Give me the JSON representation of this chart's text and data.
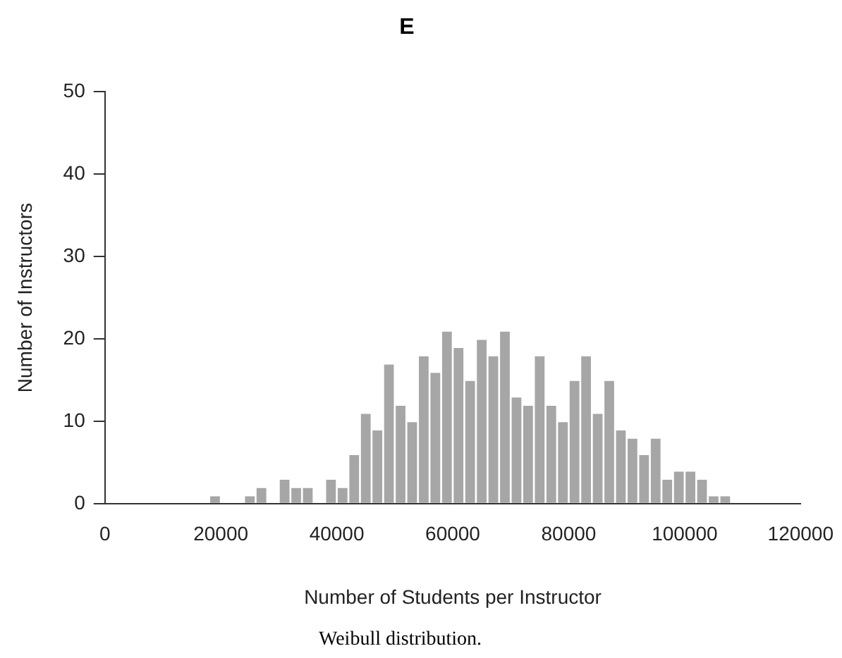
{
  "chart_data": {
    "type": "histogram",
    "title": "E",
    "xlabel": "Number of Students per Instructor",
    "ylabel": "Number of Instructors",
    "bins": [
      18000,
      20000,
      22000,
      24000,
      26000,
      28000,
      30000,
      32000,
      34000,
      36000,
      38000,
      40000,
      42000,
      44000,
      46000,
      48000,
      50000,
      52000,
      54000,
      56000,
      58000,
      60000,
      62000,
      64000,
      66000,
      68000,
      70000,
      72000,
      74000,
      76000,
      78000,
      80000,
      82000,
      84000,
      86000,
      88000,
      90000,
      92000,
      94000,
      96000,
      98000,
      100000,
      102000,
      104000,
      106000,
      108000
    ],
    "values": [
      1,
      0,
      0,
      1,
      2,
      0,
      3,
      2,
      2,
      0,
      3,
      2,
      6,
      11,
      9,
      17,
      12,
      10,
      18,
      16,
      21,
      19,
      15,
      20,
      18,
      21,
      13,
      12,
      18,
      12,
      10,
      15,
      18,
      11,
      15,
      9,
      8,
      6,
      8,
      3,
      4,
      4,
      3,
      1,
      1
    ],
    "color": "#a6a6a6",
    "xlim": [
      0,
      120000
    ],
    "xticks": [
      0,
      20000,
      40000,
      60000,
      80000,
      100000,
      120000
    ],
    "ylim": [
      0,
      50
    ],
    "yticks": [
      0,
      10,
      20,
      30,
      40,
      50
    ],
    "grid": false,
    "legend": false,
    "annotations": [
      "Weibull distribution."
    ]
  }
}
